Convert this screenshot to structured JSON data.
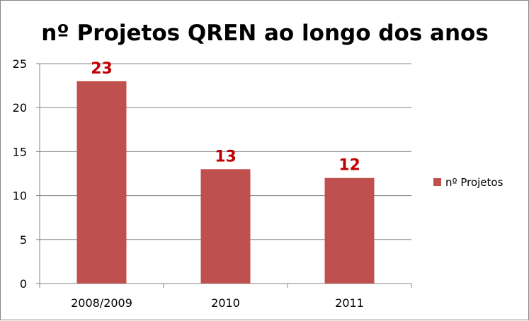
{
  "chart_data": {
    "type": "bar",
    "title": "nº Projetos QREN ao longo dos anos",
    "xlabel": "",
    "ylabel": "",
    "categories": [
      "2008/2009",
      "2010",
      "2011"
    ],
    "series": [
      {
        "name": "nº Projetos",
        "values": [
          23,
          13,
          12
        ],
        "color": "#c0504d"
      }
    ],
    "data_label_color": "#c00000",
    "ylim": [
      0,
      25
    ],
    "yticks": [
      0,
      5,
      10,
      15,
      20,
      25
    ],
    "grid": true,
    "legend": "right"
  }
}
